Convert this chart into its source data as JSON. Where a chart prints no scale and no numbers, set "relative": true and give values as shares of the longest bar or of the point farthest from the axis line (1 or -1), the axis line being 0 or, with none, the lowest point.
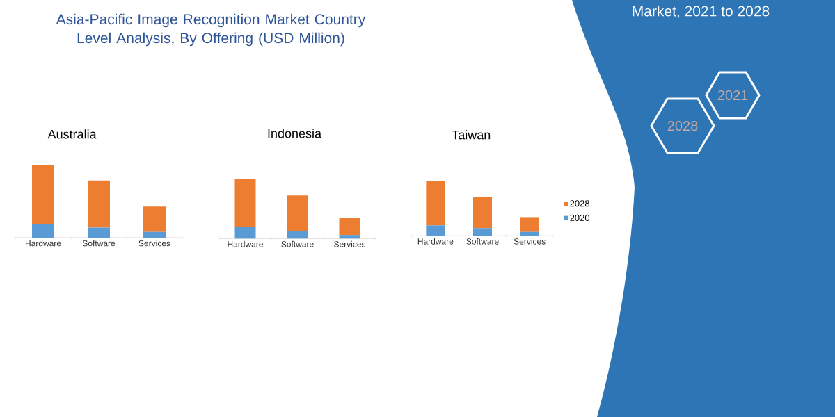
{
  "chart_data": [
    {
      "type": "bar",
      "title": "Australia",
      "categories": [
        "Hardware",
        "Software",
        "Services"
      ],
      "stacked": true,
      "relative": true,
      "annotations": [
        "Asia-Pacific Image Recognition Market Country Level Analysis, By Offering (USD Million)",
        "Market, 2021 to 2028",
        "2021",
        "2028"
      ],
      "series": [
        {
          "color": "#5b9bd5",
          "values": [
            0.19,
            0.14,
            0.08
          ]
        },
        {
          "color": "#ed7d31",
          "values": [
            0.81,
            0.65,
            0.35
          ]
        }
      ]
    },
    {
      "type": "bar",
      "title": "Indonesia",
      "categories": [
        "Hardware",
        "Software",
        "Services"
      ],
      "stacked": true,
      "relative": true,
      "series": [
        {
          "color": "#5b9bd5",
          "values": [
            0.19,
            0.13,
            0.06
          ]
        },
        {
          "color": "#ed7d31",
          "values": [
            0.81,
            0.59,
            0.28
          ]
        }
      ]
    },
    {
      "type": "bar",
      "title": "Taiwan",
      "categories": [
        "Hardware",
        "Software",
        "Services"
      ],
      "stacked": true,
      "relative": true,
      "legend": "right",
      "series": [
        {
          "name": "2020",
          "color": "#5b9bd5",
          "values": [
            0.19,
            0.14,
            0.07
          ]
        },
        {
          "name": "2028",
          "color": "#ed7d31",
          "values": [
            0.81,
            0.57,
            0.27
          ]
        }
      ]
    }
  ]
}
